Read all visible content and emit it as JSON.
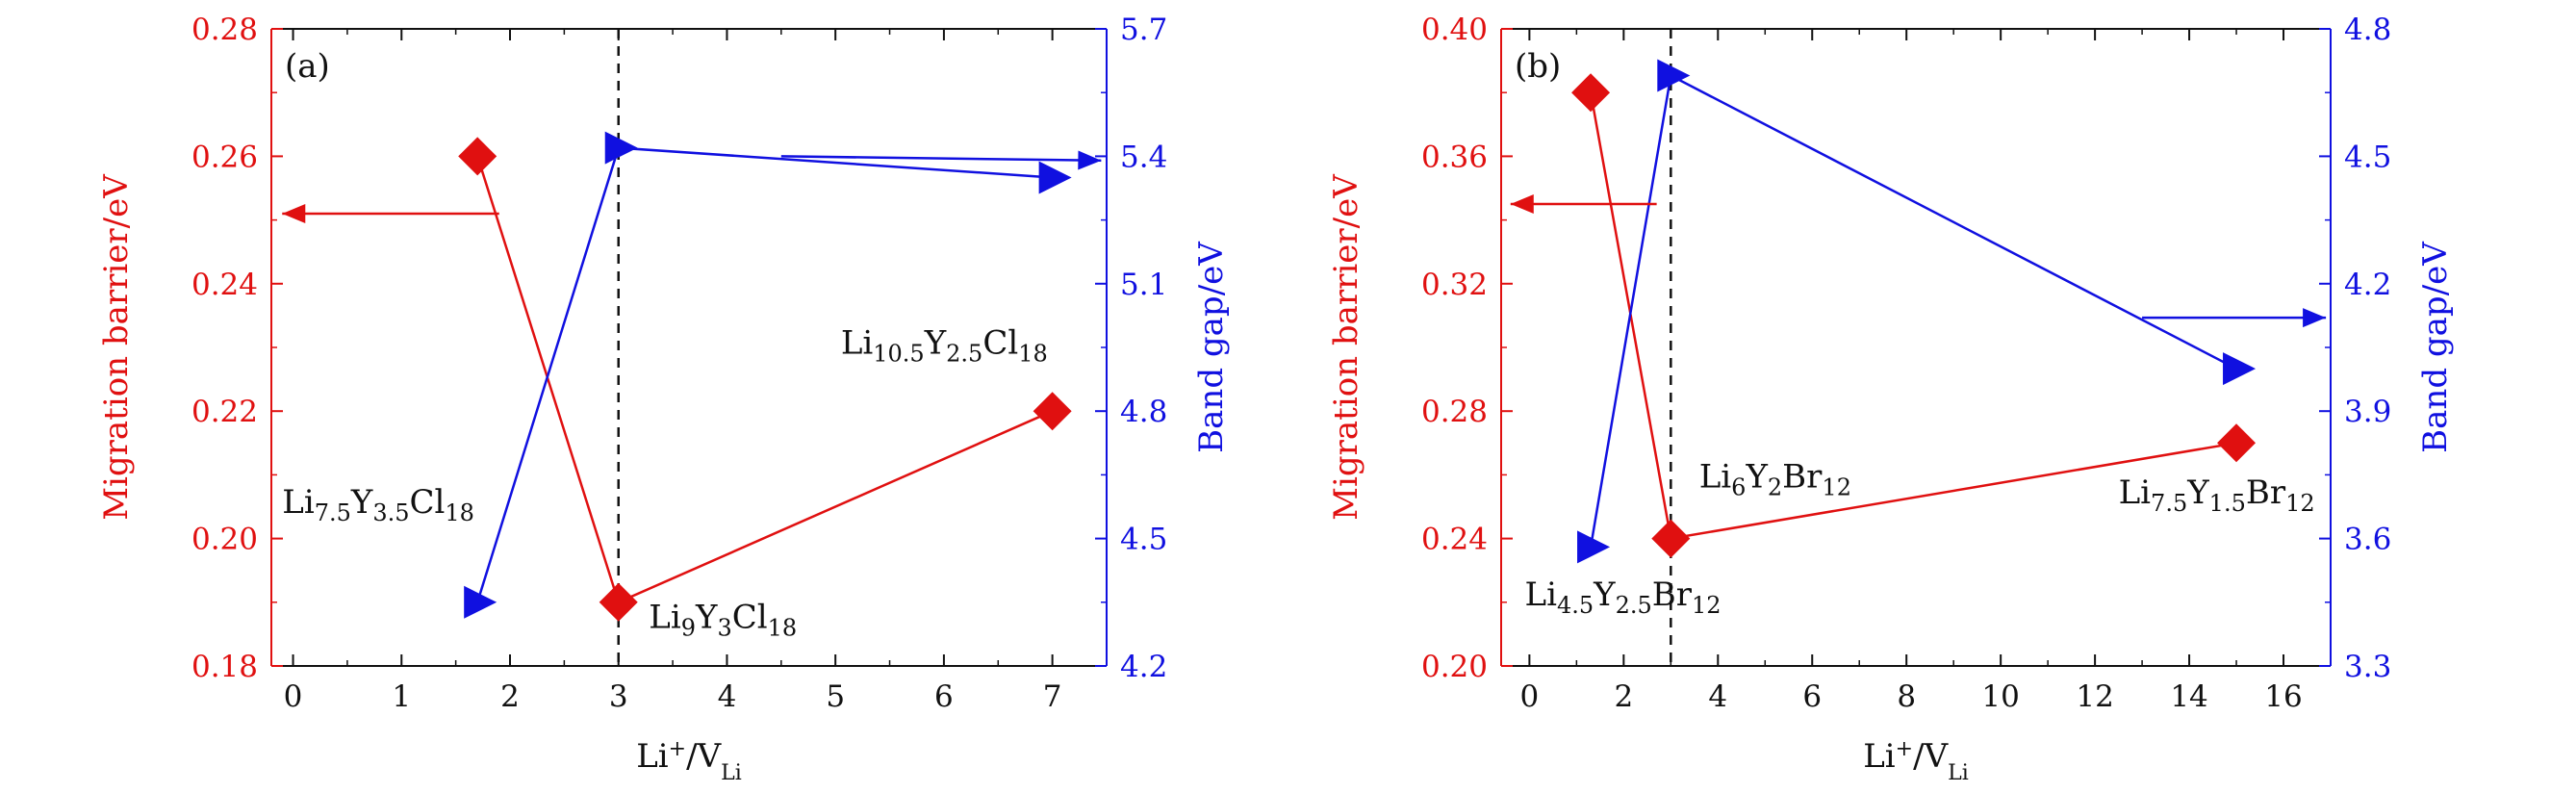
{
  "chart_data": [
    {
      "type": "scatter",
      "panel_label": "(a)",
      "xlabel": "Li⁺/V_Li",
      "ylabel_left": "Migration barrier/eV",
      "ylabel_right": "Band gap/eV",
      "xlim": [
        -0.2,
        7.5
      ],
      "ylim_left": [
        0.18,
        0.28
      ],
      "ylim_right": [
        4.2,
        5.7
      ],
      "x_ticks": [
        0,
        1,
        2,
        3,
        4,
        5,
        6,
        7
      ],
      "y_left_ticks": [
        0.18,
        0.2,
        0.22,
        0.24,
        0.26,
        0.28
      ],
      "y_right_ticks": [
        4.2,
        4.5,
        4.8,
        5.1,
        5.4,
        5.7
      ],
      "x_tick_labels": [
        "0",
        "1",
        "2",
        "3",
        "4",
        "5",
        "6",
        "7"
      ],
      "y_left_tick_labels": [
        "0.18",
        "0.20",
        "0.22",
        "0.24",
        "0.26",
        "0.28"
      ],
      "y_right_tick_labels": [
        "4.2",
        "4.5",
        "4.8",
        "5.1",
        "5.4",
        "5.7"
      ],
      "vline_x": 3,
      "series": [
        {
          "axis": "left",
          "color": "#e01010",
          "marker": "diamond",
          "x": [
            1.7,
            3.0,
            7.0
          ],
          "y": [
            0.26,
            0.19,
            0.22
          ]
        },
        {
          "axis": "right",
          "color": "#1010e0",
          "marker": "triangle-right",
          "x": [
            1.7,
            3.0,
            7.0
          ],
          "y": [
            4.35,
            5.42,
            5.35
          ]
        }
      ],
      "arrows": [
        {
          "color": "#e01010",
          "axis": "left",
          "from": [
            1.9,
            0.251
          ],
          "to": [
            -0.1,
            0.251
          ]
        },
        {
          "color": "#1010e0",
          "axis": "right",
          "from": [
            4.5,
            5.4
          ],
          "to": [
            7.45,
            5.39
          ]
        }
      ],
      "annotations": [
        {
          "parts": [
            [
              "Li",
              ""
            ],
            [
              "7.5",
              "sub"
            ],
            [
              "Y",
              ""
            ],
            [
              "3.5",
              "sub"
            ],
            [
              "Cl",
              ""
            ],
            [
              "18",
              "sub"
            ]
          ],
          "x": -0.1,
          "y": 0.204
        },
        {
          "parts": [
            [
              "Li",
              ""
            ],
            [
              "9",
              "sub"
            ],
            [
              "Y",
              ""
            ],
            [
              "3",
              "sub"
            ],
            [
              "Cl",
              ""
            ],
            [
              "18",
              "sub"
            ]
          ],
          "x": 3.28,
          "y": 0.186
        },
        {
          "parts": [
            [
              "Li",
              ""
            ],
            [
              "10.5",
              "sub"
            ],
            [
              "Y",
              ""
            ],
            [
              "2.5",
              "sub"
            ],
            [
              "Cl",
              ""
            ],
            [
              "18",
              "sub"
            ]
          ],
          "x": 5.05,
          "y": 0.229
        }
      ]
    },
    {
      "type": "scatter",
      "panel_label": "(b)",
      "xlabel": "Li⁺/V_Li",
      "ylabel_left": "Migration barrier/eV",
      "ylabel_right": "Band gap/eV",
      "xlim": [
        -0.6,
        17
      ],
      "ylim_left": [
        0.2,
        0.4
      ],
      "ylim_right": [
        3.3,
        4.8
      ],
      "x_ticks": [
        0,
        2,
        4,
        6,
        8,
        10,
        12,
        14,
        16
      ],
      "y_left_ticks": [
        0.2,
        0.24,
        0.28,
        0.32,
        0.36,
        0.4
      ],
      "y_right_ticks": [
        3.3,
        3.6,
        3.9,
        4.2,
        4.5,
        4.8
      ],
      "x_tick_labels": [
        "0",
        "2",
        "4",
        "6",
        "8",
        "10",
        "12",
        "14",
        "16"
      ],
      "y_left_tick_labels": [
        "0.20",
        "0.24",
        "0.28",
        "0.32",
        "0.36",
        "0.40"
      ],
      "y_right_tick_labels": [
        "3.3",
        "3.6",
        "3.9",
        "4.2",
        "4.5",
        "4.8"
      ],
      "vline_x": 3,
      "series": [
        {
          "axis": "left",
          "color": "#e01010",
          "marker": "diamond",
          "x": [
            1.3,
            3.0,
            15.0
          ],
          "y": [
            0.38,
            0.24,
            0.27
          ]
        },
        {
          "axis": "right",
          "color": "#1010e0",
          "marker": "triangle-right",
          "x": [
            1.3,
            3.0,
            15.0
          ],
          "y": [
            3.58,
            4.69,
            4.0
          ]
        }
      ],
      "arrows": [
        {
          "color": "#e01010",
          "axis": "left",
          "from": [
            2.7,
            0.345
          ],
          "to": [
            -0.4,
            0.345
          ]
        },
        {
          "color": "#1010e0",
          "axis": "right",
          "from": [
            13.0,
            4.12
          ],
          "to": [
            16.9,
            4.12
          ]
        }
      ],
      "annotations": [
        {
          "parts": [
            [
              "Li",
              ""
            ],
            [
              "6",
              "sub"
            ],
            [
              "Y",
              ""
            ],
            [
              "2",
              "sub"
            ],
            [
              "Br",
              ""
            ],
            [
              "12",
              "sub"
            ]
          ],
          "x": 3.6,
          "y": 0.256
        },
        {
          "parts": [
            [
              "Li",
              ""
            ],
            [
              "4.5",
              "sub"
            ],
            [
              "Y",
              ""
            ],
            [
              "2.5",
              "sub"
            ],
            [
              "Br",
              ""
            ],
            [
              "12",
              "sub"
            ]
          ],
          "x": -0.1,
          "y": 0.219
        },
        {
          "parts": [
            [
              "Li",
              ""
            ],
            [
              "7.5",
              "sub"
            ],
            [
              "Y",
              ""
            ],
            [
              "1.5",
              "sub"
            ],
            [
              "Br",
              ""
            ],
            [
              "12",
              "sub"
            ]
          ],
          "x": 12.5,
          "y": 0.251
        }
      ]
    }
  ],
  "colors": {
    "left_axis": "#e01010",
    "right_axis": "#1010e0",
    "axis": "#111111"
  }
}
